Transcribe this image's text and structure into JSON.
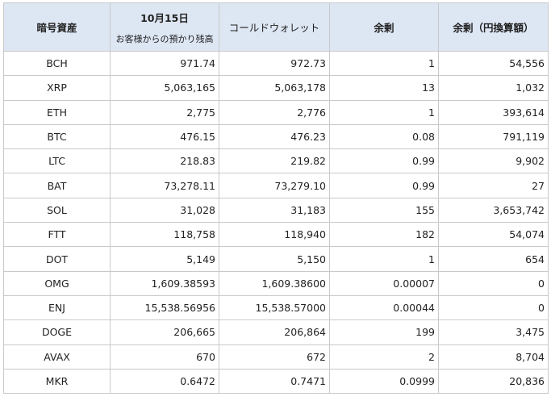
{
  "header": {
    "col1": "暗号資産",
    "col2_line1": "10月15日",
    "col2_line2": "お客様からの預かり残高",
    "col3": "コールドウォレット",
    "col4": "余剰",
    "col5": "余剰（円換算額）"
  },
  "rows": [
    {
      "asset": "BCH",
      "deposit": "971.74",
      "cold": "972.73",
      "surplus": "1",
      "surplus_jpy": "54,556"
    },
    {
      "asset": "XRP",
      "deposit": "5,063,165",
      "cold": "5,063,178",
      "surplus": "13",
      "surplus_jpy": "1,032"
    },
    {
      "asset": "ETH",
      "deposit": "2,775",
      "cold": "2,776",
      "surplus": "1",
      "surplus_jpy": "393,614"
    },
    {
      "asset": "BTC",
      "deposit": "476.15",
      "cold": "476.23",
      "surplus": "0.08",
      "surplus_jpy": "791,119"
    },
    {
      "asset": "LTC",
      "deposit": "218.83",
      "cold": "219.82",
      "surplus": "0.99",
      "surplus_jpy": "9,902"
    },
    {
      "asset": "BAT",
      "deposit": "73,278.11",
      "cold": "73,279.10",
      "surplus": "0.99",
      "surplus_jpy": "27"
    },
    {
      "asset": "SOL",
      "deposit": "31,028",
      "cold": "31,183",
      "surplus": "155",
      "surplus_jpy": "3,653,742"
    },
    {
      "asset": "FTT",
      "deposit": "118,758",
      "cold": "118,940",
      "surplus": "182",
      "surplus_jpy": "54,074"
    },
    {
      "asset": "DOT",
      "deposit": "5,149",
      "cold": "5,150",
      "surplus": "1",
      "surplus_jpy": "654"
    },
    {
      "asset": "OMG",
      "deposit": "1,609.38593",
      "cold": "1,609.38600",
      "surplus": "0.00007",
      "surplus_jpy": "0"
    },
    {
      "asset": "ENJ",
      "deposit": "15,538.56956",
      "cold": "15,538.57000",
      "surplus": "0.00044",
      "surplus_jpy": "0"
    },
    {
      "asset": "DOGE",
      "deposit": "206,665",
      "cold": "206,864",
      "surplus": "199",
      "surplus_jpy": "3,475"
    },
    {
      "asset": "AVAX",
      "deposit": "670",
      "cold": "672",
      "surplus": "2",
      "surplus_jpy": "8,704"
    },
    {
      "asset": "MKR",
      "deposit": "0.6472",
      "cold": "0.7471",
      "surplus": "0.0999",
      "surplus_jpy": "20,836"
    }
  ]
}
